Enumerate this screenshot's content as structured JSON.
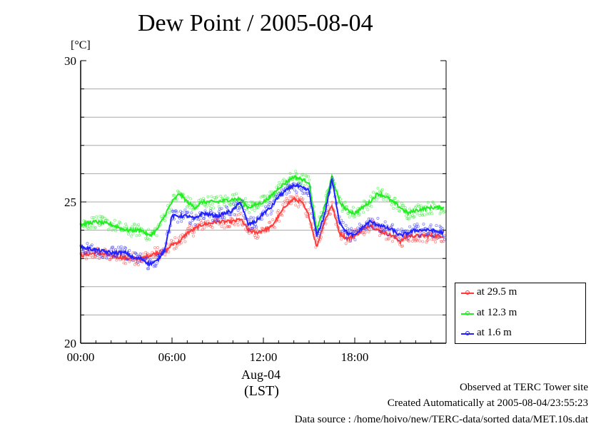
{
  "header": {
    "title": "Dew Point / 2005-08-04"
  },
  "axis": {
    "y_unit": "[°C]",
    "date_label": "Aug-04",
    "timezone_label": "(LST)"
  },
  "footer": {
    "site": "Observed at TERC Tower site",
    "created": "Created Automatically at 2005-08-04/23:55:23",
    "source": "Data source : /home/hoivo/new/TERC-data/sorted  data/MET.10s.dat"
  },
  "colors": {
    "h29_5": "#ff3b3b",
    "h12_3": "#22ee22",
    "h1_6": "#2222ff",
    "grid": "#aaaaaa"
  },
  "chart_data": {
    "type": "line",
    "title": "Dew Point / 2005-08-04",
    "xlabel": "",
    "ylabel": "[°C]",
    "x_unit": "hour (LST)",
    "xlim": [
      0,
      24
    ],
    "ylim": [
      20,
      30
    ],
    "y_ticks": [
      20,
      25,
      30
    ],
    "y_minor_step": 1,
    "x_ticks": [
      0,
      6,
      12,
      18
    ],
    "x_tick_labels": [
      "00:00",
      "06:00",
      "12:00",
      "18:00"
    ],
    "grid": true,
    "legend_position": "right-bottom",
    "series": [
      {
        "name": "at 29.5 m",
        "color": "#ff3b3b",
        "x": [
          0,
          1,
          2,
          3,
          4,
          5,
          5.5,
          6,
          6.5,
          7,
          8,
          9,
          10,
          10.5,
          11,
          11.5,
          12,
          12.5,
          13,
          13.5,
          14,
          14.5,
          15,
          15.5,
          16,
          16.5,
          17,
          17.5,
          18,
          18.5,
          19,
          19.5,
          20,
          20.5,
          21,
          21.5,
          22,
          23,
          23.9
        ],
        "values": [
          23.1,
          23.2,
          23.1,
          23.0,
          23.0,
          23.2,
          23.2,
          23.5,
          23.6,
          23.9,
          24.2,
          24.3,
          24.3,
          24.4,
          24.0,
          23.9,
          24.0,
          24.1,
          24.5,
          24.9,
          25.1,
          25.0,
          24.5,
          23.4,
          24.3,
          24.9,
          23.9,
          23.7,
          23.8,
          24.0,
          24.2,
          24.0,
          23.9,
          23.8,
          23.6,
          23.8,
          23.8,
          23.8,
          23.8
        ]
      },
      {
        "name": "at 12.3 m",
        "color": "#22ee22",
        "x": [
          0,
          1,
          2,
          2.5,
          3,
          4,
          4.5,
          5,
          5.5,
          6,
          6.5,
          7,
          7.5,
          8,
          9,
          10,
          10.5,
          11,
          11.5,
          12,
          12.5,
          13,
          13.5,
          14,
          14.5,
          15,
          15.5,
          16,
          16.5,
          17,
          17.5,
          18,
          18.5,
          19,
          19.5,
          20,
          20.5,
          21,
          21.5,
          22,
          23,
          23.9
        ],
        "values": [
          24.2,
          24.3,
          24.2,
          24.1,
          24.0,
          24.0,
          23.8,
          24.0,
          24.5,
          25.0,
          25.3,
          25.0,
          24.8,
          25.0,
          25.0,
          25.1,
          25.1,
          24.8,
          24.9,
          25.0,
          25.2,
          25.5,
          25.7,
          25.9,
          25.8,
          25.7,
          24.0,
          24.8,
          25.9,
          25.0,
          24.7,
          24.6,
          24.8,
          25.0,
          25.3,
          25.2,
          25.0,
          24.8,
          24.6,
          24.7,
          24.8,
          24.8
        ]
      },
      {
        "name": "at 1.6 m",
        "color": "#2222ff",
        "x": [
          0,
          1,
          2,
          3,
          3.5,
          4,
          4.5,
          5,
          5.5,
          6,
          6.5,
          7,
          7.5,
          8,
          9,
          10,
          10.5,
          11,
          11.5,
          12,
          12.5,
          13,
          13.5,
          14,
          14.5,
          15,
          15.5,
          16,
          16.5,
          17,
          17.5,
          18,
          18.5,
          19,
          19.5,
          20,
          20.5,
          21,
          21.5,
          22,
          23,
          23.9
        ],
        "values": [
          23.4,
          23.3,
          23.2,
          23.2,
          23.0,
          23.0,
          22.8,
          22.9,
          23.3,
          24.5,
          24.5,
          24.5,
          24.4,
          24.6,
          24.5,
          24.7,
          25.0,
          24.2,
          24.3,
          24.6,
          24.8,
          25.2,
          25.4,
          25.6,
          25.5,
          25.4,
          23.8,
          24.5,
          25.8,
          24.3,
          23.9,
          23.8,
          24.1,
          24.3,
          24.2,
          24.1,
          24.0,
          23.8,
          23.9,
          24.0,
          24.0,
          23.9
        ]
      }
    ]
  }
}
